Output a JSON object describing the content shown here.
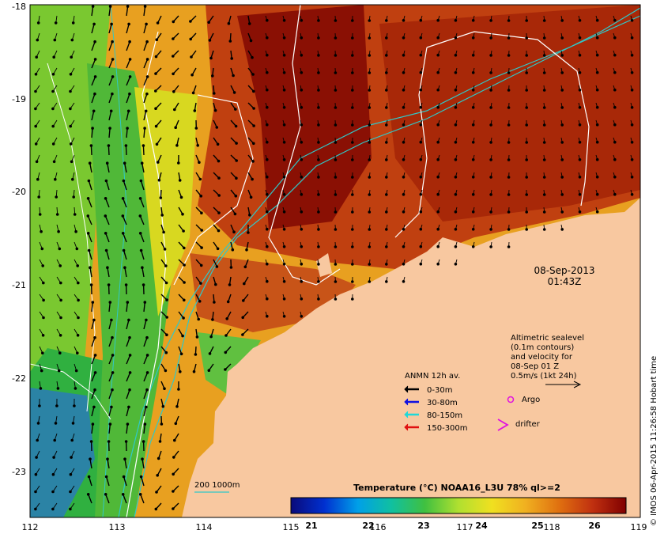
{
  "map": {
    "lon_ticks": [
      "112",
      "113",
      "114",
      "115",
      "116",
      "117",
      "118",
      "119"
    ],
    "lat_ticks": [
      "-18",
      "-19",
      "-20",
      "-21",
      "-22",
      "-23"
    ]
  },
  "timestamp": {
    "date": "08-Sep-2013",
    "time": "01:43Z"
  },
  "sealevel_note": [
    "Altimetric sealevel",
    "(0.1m contours)",
    "and velocity for",
    "08-Sep 01 Z",
    "0.5m/s (1kt 24h)"
  ],
  "anmn": {
    "title": "ANMN 12h av.",
    "items": [
      {
        "label": "0-30m",
        "color": "#000000"
      },
      {
        "label": "30-80m",
        "color": "#1010e0"
      },
      {
        "label": "80-150m",
        "color": "#20d8d8"
      },
      {
        "label": "150-300m",
        "color": "#e01010"
      }
    ]
  },
  "markers": {
    "argo": "Argo",
    "drifter": "drifter"
  },
  "bathy_label": "200  1000m",
  "colorbar": {
    "title": "Temperature (°C) NOAA16_L3U 78% ql>=2",
    "ticks": [
      "21",
      "22",
      "23",
      "24",
      "25",
      "26"
    ],
    "colors": [
      "#0a0a7a",
      "#0030d0",
      "#00a0e8",
      "#10c0a0",
      "#40c040",
      "#b0e030",
      "#f0e020",
      "#f0b020",
      "#e07010",
      "#c03010",
      "#800000"
    ]
  },
  "credit": "© IMOS 06-Apr-2015 11:26:58 Hobart time",
  "colors": {
    "land": "#f8c8a0",
    "contour": "#ffffff",
    "bathy": "#30c8c8"
  }
}
